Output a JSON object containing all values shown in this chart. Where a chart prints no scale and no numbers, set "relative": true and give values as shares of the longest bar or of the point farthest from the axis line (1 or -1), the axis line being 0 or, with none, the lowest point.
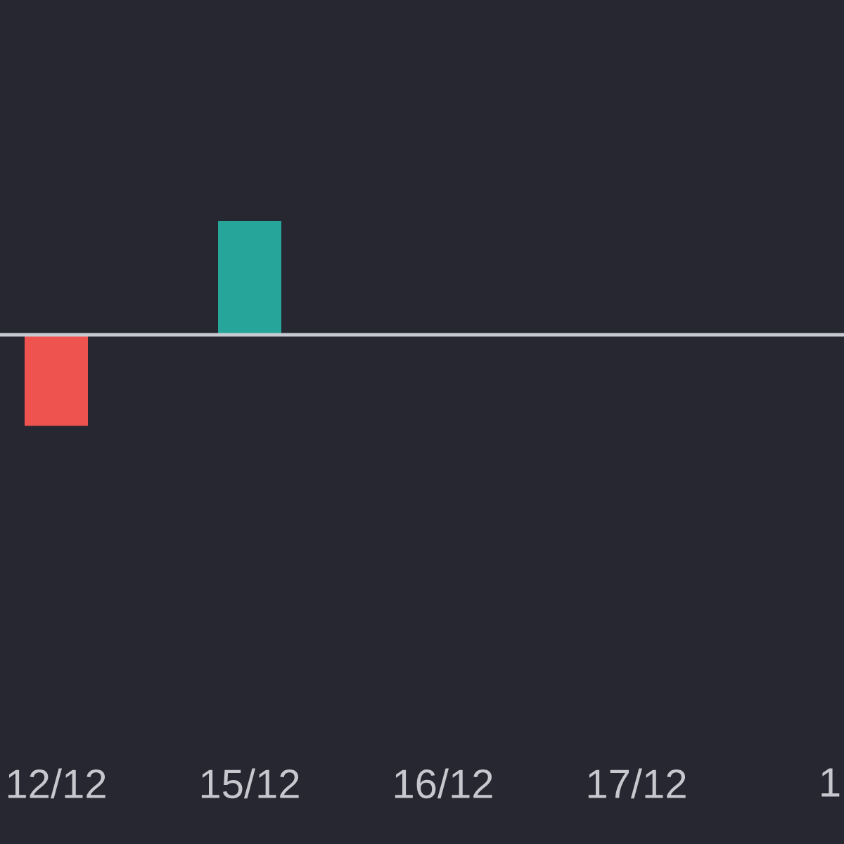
{
  "chart_data": {
    "type": "bar",
    "relative": true,
    "categories": [
      "12/12",
      "15/12",
      "16/12",
      "17/12",
      "1"
    ],
    "values": [
      -0.8,
      1,
      null,
      null,
      null
    ],
    "colors": [
      "#ef5350",
      "#26a69a",
      null,
      null,
      null
    ]
  }
}
